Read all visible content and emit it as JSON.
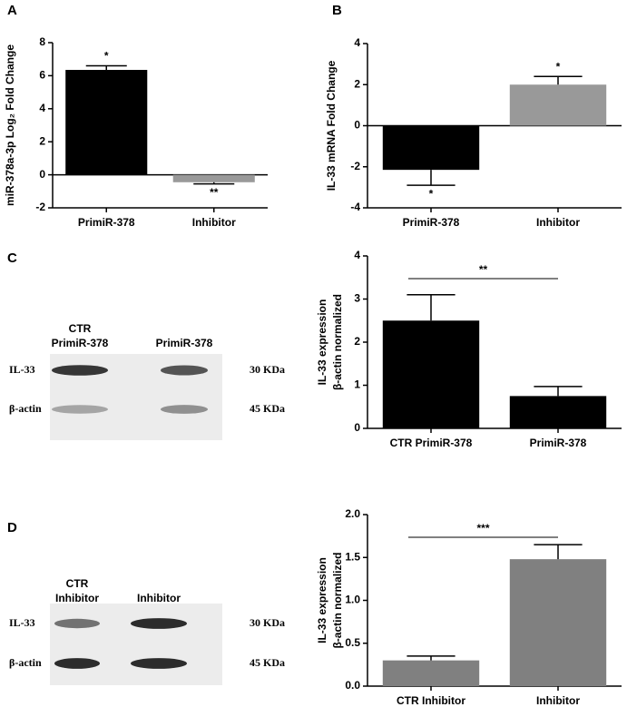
{
  "chart_data": [
    {
      "type": "bar",
      "panel": "A",
      "ylabel": "miR-378a-3p Log₂ Fold Change",
      "categories": [
        "PrimiR-378",
        "Inhibitor"
      ],
      "values": [
        6.35,
        -0.45
      ],
      "errors": [
        0.25,
        0.1
      ],
      "value_annotations": [
        "*",
        "**"
      ],
      "colors": [
        "#000000",
        "#999999"
      ],
      "ylim": [
        -2,
        8
      ],
      "yticks": [
        -2,
        0,
        2,
        4,
        6,
        8
      ]
    },
    {
      "type": "bar",
      "panel": "B",
      "ylabel": "IL-33 mRNA Fold Change",
      "categories": [
        "PrimiR-378",
        "Inhibitor"
      ],
      "values": [
        -2.15,
        2.0
      ],
      "errors": [
        0.75,
        0.4
      ],
      "value_annotations": [
        "*",
        "*"
      ],
      "colors": [
        "#000000",
        "#999999"
      ],
      "ylim": [
        -4,
        4
      ],
      "yticks": [
        -4,
        -2,
        0,
        2,
        4
      ]
    },
    {
      "type": "bar",
      "panel": "C",
      "ylabel": [
        "IL-33  expression",
        "β-actin normalized"
      ],
      "categories": [
        "CTR PrimiR-378",
        "PrimiR-378"
      ],
      "values": [
        2.5,
        0.75
      ],
      "errors": [
        0.6,
        0.22
      ],
      "annotation": "**",
      "colors": [
        "#000000",
        "#000000"
      ],
      "ylim": [
        0,
        4
      ],
      "yticks": [
        0,
        1,
        2,
        3,
        4
      ]
    },
    {
      "type": "bar",
      "panel": "D",
      "ylabel": [
        "IL-33  expression",
        "β-actin normalized"
      ],
      "categories": [
        "CTR Inhibitor",
        "Inhibitor"
      ],
      "values": [
        0.3,
        1.48
      ],
      "errors": [
        0.05,
        0.17
      ],
      "annotation": "***",
      "colors": [
        "#808080",
        "#808080"
      ],
      "ylim": [
        0,
        2.0
      ],
      "yticks": [
        {
          "value": 0,
          "label": "0.0"
        },
        {
          "value": 0.5,
          "label": "0.5"
        },
        {
          "value": 1.0,
          "label": "1.0"
        },
        {
          "value": 1.5,
          "label": "1.5"
        },
        {
          "value": 2.0,
          "label": "2.0"
        }
      ]
    }
  ],
  "blots": [
    {
      "lanes": [
        [
          "CTR",
          "PrimiR-378"
        ],
        [
          "PrimiR-378"
        ]
      ],
      "rows": [
        {
          "protein": "IL-33",
          "size": "30 KDa"
        },
        {
          "protein": "β-actin",
          "size": "45 KDa"
        }
      ]
    },
    {
      "lanes": [
        [
          "CTR",
          "Inhibitor"
        ],
        [
          "Inhibitor"
        ]
      ],
      "rows": [
        {
          "protein": "IL-33",
          "size": "30 KDa"
        },
        {
          "protein": "β-actin",
          "size": "45 KDa"
        }
      ]
    }
  ]
}
